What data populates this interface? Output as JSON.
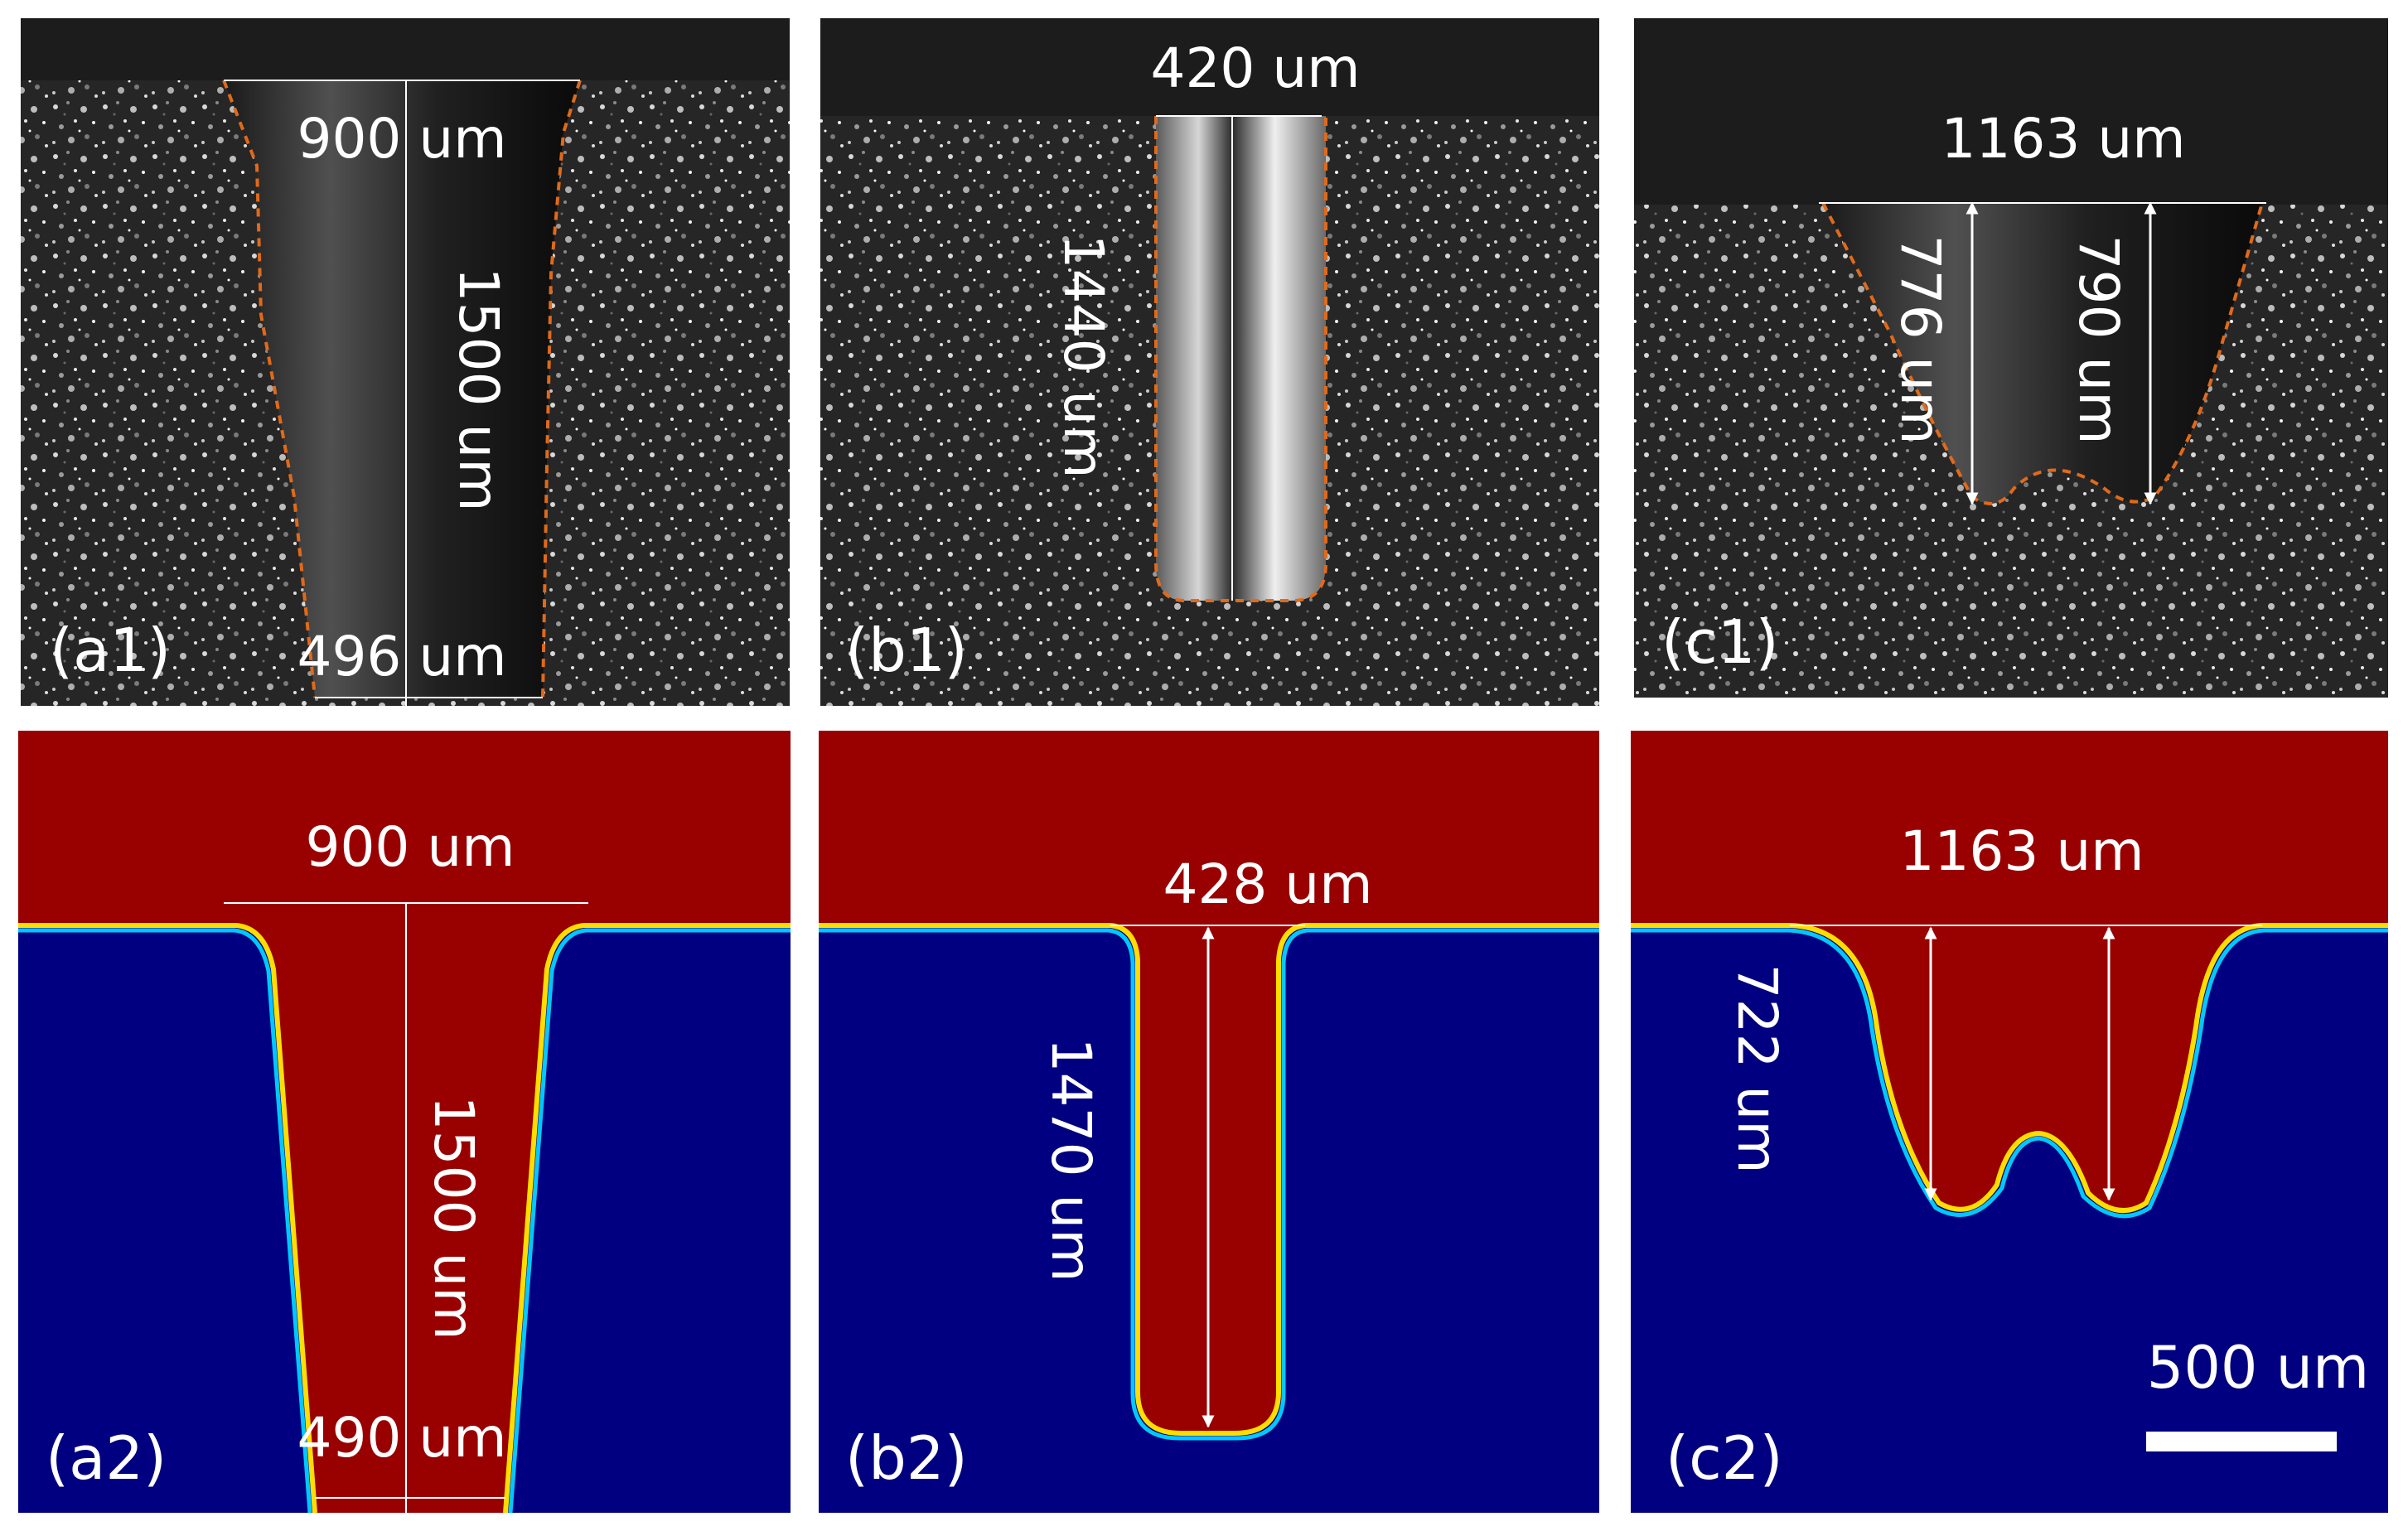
{
  "figure": {
    "panels": [
      {
        "id": "a1",
        "label": "(a1)",
        "kind": "micrograph",
        "measurements": [
          "900 um",
          "1500 um",
          "496 um"
        ]
      },
      {
        "id": "b1",
        "label": "(b1)",
        "kind": "micrograph",
        "measurements": [
          "420 um",
          "1440 um"
        ]
      },
      {
        "id": "c1",
        "label": "(c1)",
        "kind": "micrograph",
        "measurements": [
          "1163 um",
          "776 um",
          "790 um"
        ]
      },
      {
        "id": "a2",
        "label": "(a2)",
        "kind": "simulation",
        "measurements": [
          "900 um",
          "1500 um",
          "490 um"
        ]
      },
      {
        "id": "b2",
        "label": "(b2)",
        "kind": "simulation",
        "measurements": [
          "428 um",
          "1470 um"
        ]
      },
      {
        "id": "c2",
        "label": "(c2)",
        "kind": "simulation",
        "measurements": [
          "1163 um",
          "722 um"
        ]
      }
    ],
    "scale_bar": {
      "label": "500 um"
    }
  },
  "colors": {
    "sim_fluid": "#990000",
    "sim_solid": "#000080",
    "micro_bg": "#2a2a2a",
    "micro_top": "#1c1c1c",
    "boundary_dash": "#e06a1b",
    "annotation": "#ffffff"
  }
}
